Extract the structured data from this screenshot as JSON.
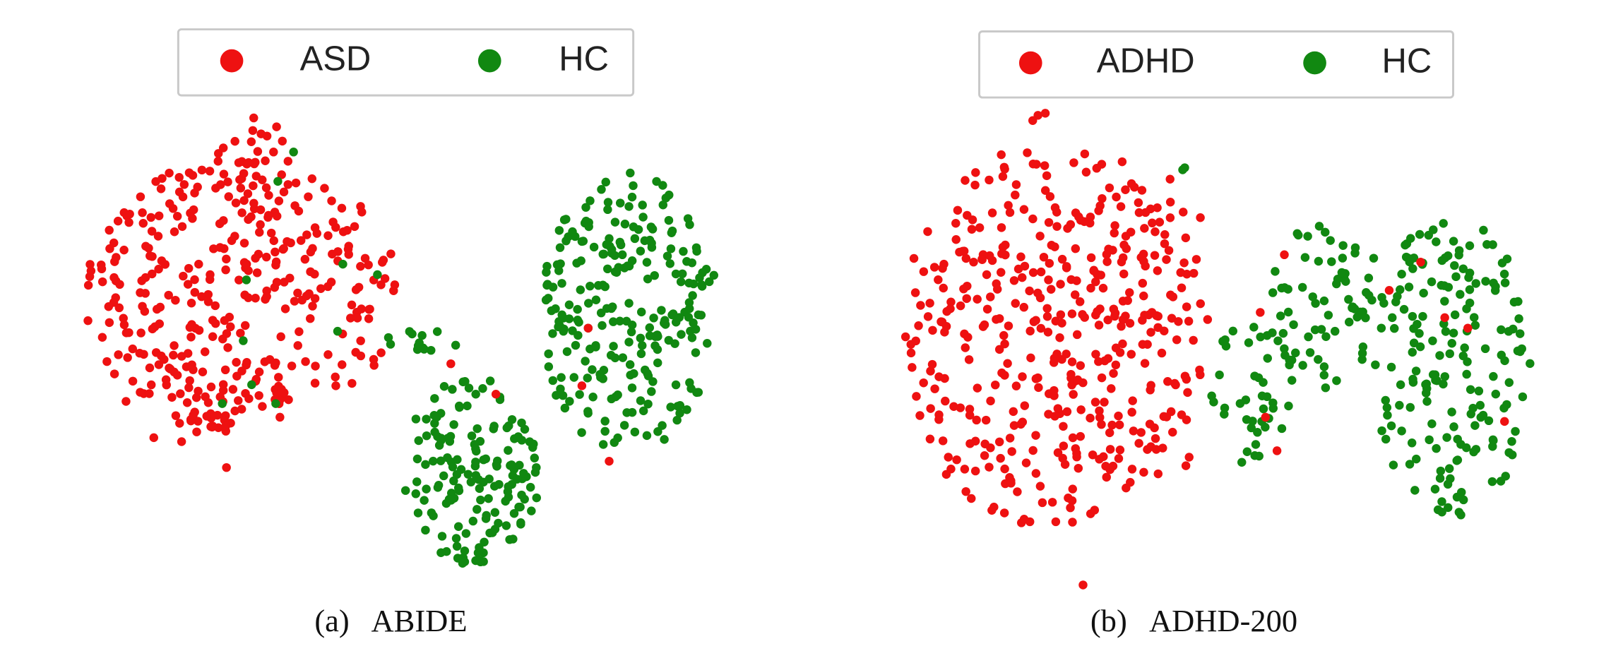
{
  "chart_data": [
    {
      "type": "scatter",
      "caption_label": "(a)",
      "caption_name": "ABIDE",
      "legend": [
        "ASD",
        "HC"
      ],
      "colors": {
        "ASD": "#ee1111",
        "HC": "#118811"
      },
      "xlabel": "",
      "ylabel": "",
      "series": [
        {
          "name": "ASD",
          "clusters": [
            {
              "cx": 230,
              "cy": 280,
              "rx": 150,
              "ry": 130,
              "n": 330,
              "seed": 11
            },
            {
              "cx": 240,
              "cy": 150,
              "rx": 40,
              "ry": 45,
              "n": 25,
              "seed": 12
            },
            {
              "cx": 185,
              "cy": 385,
              "rx": 70,
              "ry": 40,
              "n": 35,
              "seed": 13
            }
          ],
          "extra": [
            [
              216,
              446
            ],
            [
              555,
              368
            ],
            [
              581,
              440
            ],
            [
              473,
              376
            ],
            [
              430,
              347
            ],
            [
              561,
              313
            ]
          ]
        },
        {
          "name": "HC",
          "clusters": [
            {
              "cx": 600,
              "cy": 300,
              "rx": 85,
              "ry": 135,
              "n": 250,
              "seed": 21
            },
            {
              "cx": 450,
              "cy": 450,
              "rx": 65,
              "ry": 90,
              "n": 160,
              "seed": 22
            },
            {
              "cx": 400,
              "cy": 325,
              "rx": 45,
              "ry": 10,
              "n": 14,
              "seed": 23
            }
          ],
          "extra": [
            [
              235,
              267
            ],
            [
              265,
              173
            ],
            [
              327,
              252
            ],
            [
              360,
              262
            ],
            [
              280,
              145
            ],
            [
              232,
              325
            ],
            [
              212,
              385
            ],
            [
              263,
              385
            ],
            [
              322,
              316
            ],
            [
              240,
              367
            ]
          ]
        }
      ]
    },
    {
      "type": "scatter",
      "caption_label": "(b)",
      "caption_name": "ADHD-200",
      "legend": [
        "ADHD",
        "HC"
      ],
      "colors": {
        "ADHD": "#ee1111",
        "HC": "#118811"
      },
      "xlabel": "",
      "ylabel": "",
      "series": [
        {
          "name": "ADHD",
          "clusters": [
            {
              "cx": 1000,
              "cy": 320,
              "rx": 140,
              "ry": 185,
              "n": 360,
              "seed": 31
            },
            {
              "cx": 1080,
              "cy": 310,
              "rx": 85,
              "ry": 170,
              "n": 80,
              "seed": 32
            }
          ],
          "extra": [
            [
              990,
              110
            ],
            [
              997,
              108
            ],
            [
              985,
              115
            ],
            [
              1033,
              558
            ],
            [
              1355,
              250
            ],
            [
              1325,
              277
            ],
            [
              1378,
              303
            ],
            [
              1400,
              313
            ],
            [
              1435,
              402
            ],
            [
              1225,
              243
            ],
            [
              1202,
              298
            ],
            [
              1207,
              398
            ],
            [
              1218,
              430
            ]
          ]
        },
        {
          "name": "HC",
          "clusters": [
            {
              "cx": 1265,
              "cy": 290,
              "rx": 55,
              "ry": 80,
              "n": 70,
              "seed": 41
            },
            {
              "cx": 1385,
              "cy": 350,
              "rx": 75,
              "ry": 145,
              "n": 180,
              "seed": 42
            },
            {
              "cx": 1195,
              "cy": 370,
              "rx": 40,
              "ry": 75,
              "n": 40,
              "seed": 43
            }
          ],
          "extra": [
            [
              1128,
              162
            ],
            [
              1130,
              160
            ]
          ]
        }
      ]
    }
  ]
}
